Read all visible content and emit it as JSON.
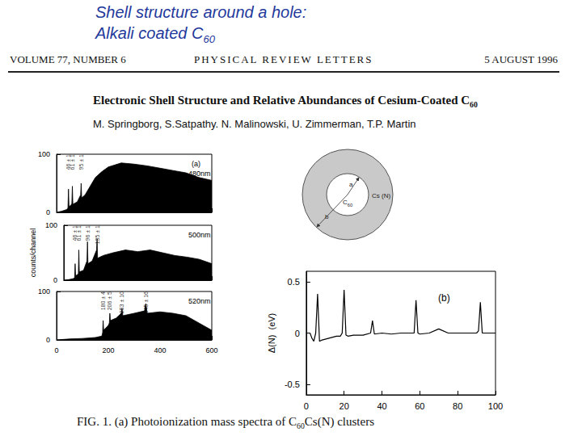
{
  "slide_title": [
    {
      "text": "Shell structure around a hole:"
    }
  ],
  "slide_subtitle": [
    {
      "text": " Alkali coated C"
    },
    {
      "text": "60",
      "sub": true
    }
  ],
  "journal": {
    "volume": "VOLUME 77, NUMBER 6",
    "name": "PHYSICAL REVIEW LETTERS",
    "date": "5 AUGUST 1996"
  },
  "paper_title": [
    {
      "text": "Electronic Shell Structure and Relative Abundances of Cesium-Coated C"
    },
    {
      "text": "60",
      "sub": true
    }
  ],
  "authors": "M. Springborg,  S.Satpathy. N. Malinowski, U. Zimmerman, T.P. Martin",
  "diagram": {
    "inner_radius_label": "a",
    "outer_radius_label": "b",
    "core_label": [
      {
        "text": "C"
      },
      {
        "text": "60",
        "sub": true
      }
    ],
    "shell_label": "Cs (N)"
  },
  "caption": [
    {
      "text": "FIG. 1.    (a) Photoionization mass spectra of C"
    },
    {
      "text": "60",
      "sub": true
    },
    {
      "text": "Cs(N) clusters"
    }
  ],
  "chart_data": [
    {
      "type": "area",
      "panel": "(a)",
      "label": "480nm",
      "color": "#000000",
      "x": [
        0,
        20,
        40,
        44,
        46,
        48,
        55,
        59,
        61,
        63,
        80,
        93,
        95,
        97,
        110,
        130,
        150,
        175,
        200,
        250,
        300,
        350,
        400,
        450,
        500,
        550,
        600
      ],
      "values": [
        0,
        2,
        5,
        8,
        40,
        10,
        12,
        15,
        45,
        14,
        18,
        30,
        50,
        25,
        30,
        45,
        60,
        70,
        78,
        85,
        83,
        80,
        76,
        72,
        68,
        60,
        55
      ],
      "peaks": [
        {
          "x": 46,
          "label": "46 ± 1"
        },
        {
          "x": 61,
          "label": "61 ± 1"
        },
        {
          "x": 95,
          "label": "95 ± 1"
        }
      ],
      "xlim": [
        0,
        600
      ],
      "xticks": [
        0,
        200,
        400,
        600
      ],
      "ylim": [
        0,
        100
      ],
      "yticks": [
        0,
        100
      ],
      "grid": false,
      "tick_labels": "y"
    },
    {
      "type": "area",
      "label": "500nm",
      "ylabel": "counts/channel",
      "color": "#000000",
      "x": [
        0,
        20,
        40,
        44,
        46,
        48,
        55,
        59,
        61,
        63,
        80,
        94,
        96,
        98,
        115,
        133,
        135,
        137,
        160,
        200,
        250,
        300,
        350,
        400,
        450,
        500,
        550,
        600
      ],
      "values": [
        0,
        1,
        3,
        5,
        30,
        8,
        10,
        12,
        55,
        15,
        18,
        35,
        70,
        30,
        35,
        55,
        75,
        40,
        45,
        50,
        55,
        52,
        55,
        50,
        45,
        42,
        38,
        30
      ],
      "peaks": [
        {
          "x": 46,
          "label": "46 ± 1"
        },
        {
          "x": 61,
          "label": "61 ± 1"
        },
        {
          "x": 96,
          "label": "96 ± 1"
        },
        {
          "x": 135,
          "label": "135 ± 1"
        }
      ],
      "xlim": [
        0,
        600
      ],
      "xticks": [
        0,
        200,
        400,
        600
      ],
      "ylim": [
        0,
        100
      ],
      "yticks": [
        0,
        100
      ],
      "grid": false,
      "tick_labels": "y"
    },
    {
      "type": "area",
      "label": "520nm",
      "color": "#000000",
      "x": [
        0,
        50,
        100,
        150,
        175,
        178,
        180,
        182,
        200,
        204,
        206,
        208,
        230,
        250,
        253,
        256,
        300,
        340,
        345,
        350,
        400,
        450,
        500,
        550,
        600
      ],
      "values": [
        0,
        2,
        3,
        5,
        8,
        15,
        40,
        20,
        30,
        35,
        55,
        40,
        45,
        55,
        65,
        50,
        55,
        60,
        75,
        55,
        58,
        55,
        50,
        35,
        20
      ],
      "peaks": [
        {
          "x": 180,
          "label": "180 ± 4"
        },
        {
          "x": 206,
          "label": "206 ± 5"
        },
        {
          "x": 253,
          "label": "253 ± 10"
        },
        {
          "x": 345,
          "label": "345 ± 16"
        }
      ],
      "xlim": [
        0,
        600
      ],
      "xticks": [
        0,
        200,
        400,
        600
      ],
      "ylim": [
        0,
        100
      ],
      "yticks": [
        0,
        100
      ],
      "grid": false
    },
    {
      "type": "line",
      "annotation": "(b)",
      "ylabel": "Δ(N)  (eV)",
      "color": "#000000",
      "x": [
        2,
        3,
        4,
        5,
        6,
        7,
        8,
        10,
        12,
        14,
        16,
        18,
        19,
        20,
        21,
        22,
        25,
        30,
        34,
        35,
        36,
        40,
        45,
        50,
        55,
        57,
        58,
        59,
        60,
        65,
        70,
        75,
        80,
        85,
        90,
        91,
        92,
        93,
        95,
        100
      ],
      "values": [
        0.0,
        -0.05,
        -0.08,
        0.0,
        0.38,
        -0.08,
        -0.07,
        -0.06,
        -0.05,
        -0.04,
        -0.03,
        -0.03,
        0.0,
        0.42,
        -0.02,
        -0.03,
        -0.02,
        -0.02,
        0.0,
        0.12,
        -0.01,
        0.0,
        -0.01,
        0.0,
        0.0,
        0.0,
        0.32,
        0.0,
        -0.01,
        0.0,
        0.04,
        0.0,
        0.0,
        0.0,
        0.0,
        0.02,
        0.3,
        0.0,
        0.0,
        0.0
      ],
      "xlim": [
        0,
        100
      ],
      "xticks": [
        0,
        20,
        40,
        60,
        80,
        100
      ],
      "ylim": [
        -0.6,
        0.6
      ],
      "yticks": [
        -0.5,
        0,
        0.5
      ],
      "grid": false
    }
  ]
}
